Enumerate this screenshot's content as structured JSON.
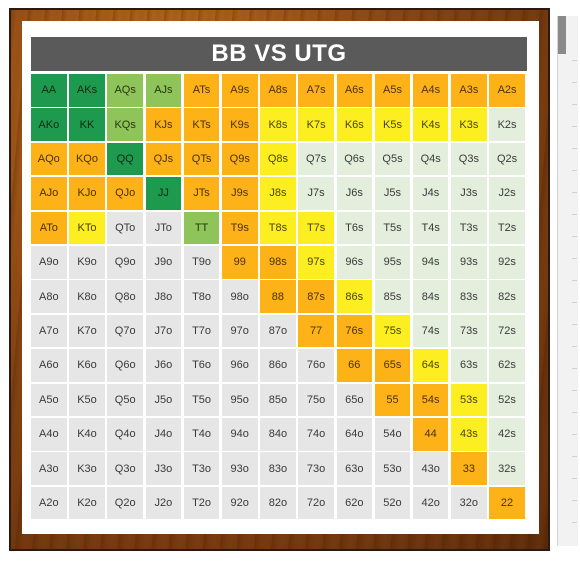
{
  "title": "BB VS UTG",
  "colors": {
    "dg": "#1e9a4e",
    "lg": "#8fc45a",
    "or": "#fdb318",
    "ye": "#fcee21",
    "gy": "#e6e6e6",
    "pg": "#e3eedc"
  },
  "grid": [
    [
      [
        "AA",
        "dg"
      ],
      [
        "AKs",
        "dg"
      ],
      [
        "AQs",
        "lg"
      ],
      [
        "AJs",
        "lg"
      ],
      [
        "ATs",
        "or"
      ],
      [
        "A9s",
        "or"
      ],
      [
        "A8s",
        "or"
      ],
      [
        "A7s",
        "or"
      ],
      [
        "A6s",
        "or"
      ],
      [
        "A5s",
        "or"
      ],
      [
        "A4s",
        "or"
      ],
      [
        "A3s",
        "or"
      ],
      [
        "A2s",
        "or"
      ]
    ],
    [
      [
        "AKo",
        "dg"
      ],
      [
        "KK",
        "dg"
      ],
      [
        "KQs",
        "lg"
      ],
      [
        "KJs",
        "or"
      ],
      [
        "KTs",
        "or"
      ],
      [
        "K9s",
        "or"
      ],
      [
        "K8s",
        "ye"
      ],
      [
        "K7s",
        "ye"
      ],
      [
        "K6s",
        "ye"
      ],
      [
        "K5s",
        "ye"
      ],
      [
        "K4s",
        "ye"
      ],
      [
        "K3s",
        "ye"
      ],
      [
        "K2s",
        "pg"
      ]
    ],
    [
      [
        "AQo",
        "or"
      ],
      [
        "KQo",
        "or"
      ],
      [
        "QQ",
        "dg"
      ],
      [
        "QJs",
        "or"
      ],
      [
        "QTs",
        "or"
      ],
      [
        "Q9s",
        "or"
      ],
      [
        "Q8s",
        "ye"
      ],
      [
        "Q7s",
        "pg"
      ],
      [
        "Q6s",
        "pg"
      ],
      [
        "Q5s",
        "pg"
      ],
      [
        "Q4s",
        "pg"
      ],
      [
        "Q3s",
        "pg"
      ],
      [
        "Q2s",
        "pg"
      ]
    ],
    [
      [
        "AJo",
        "or"
      ],
      [
        "KJo",
        "or"
      ],
      [
        "QJo",
        "or"
      ],
      [
        "JJ",
        "dg"
      ],
      [
        "JTs",
        "or"
      ],
      [
        "J9s",
        "or"
      ],
      [
        "J8s",
        "ye"
      ],
      [
        "J7s",
        "pg"
      ],
      [
        "J6s",
        "pg"
      ],
      [
        "J5s",
        "pg"
      ],
      [
        "J4s",
        "pg"
      ],
      [
        "J3s",
        "pg"
      ],
      [
        "J2s",
        "pg"
      ]
    ],
    [
      [
        "ATo",
        "or"
      ],
      [
        "KTo",
        "ye"
      ],
      [
        "QTo",
        "gy"
      ],
      [
        "JTo",
        "gy"
      ],
      [
        "TT",
        "lg"
      ],
      [
        "T9s",
        "or"
      ],
      [
        "T8s",
        "ye"
      ],
      [
        "T7s",
        "ye"
      ],
      [
        "T6s",
        "pg"
      ],
      [
        "T5s",
        "pg"
      ],
      [
        "T4s",
        "pg"
      ],
      [
        "T3s",
        "pg"
      ],
      [
        "T2s",
        "pg"
      ]
    ],
    [
      [
        "A9o",
        "gy"
      ],
      [
        "K9o",
        "gy"
      ],
      [
        "Q9o",
        "gy"
      ],
      [
        "J9o",
        "gy"
      ],
      [
        "T9o",
        "gy"
      ],
      [
        "99",
        "or"
      ],
      [
        "98s",
        "or"
      ],
      [
        "97s",
        "ye"
      ],
      [
        "96s",
        "pg"
      ],
      [
        "95s",
        "pg"
      ],
      [
        "94s",
        "pg"
      ],
      [
        "93s",
        "pg"
      ],
      [
        "92s",
        "pg"
      ]
    ],
    [
      [
        "A8o",
        "gy"
      ],
      [
        "K8o",
        "gy"
      ],
      [
        "Q8o",
        "gy"
      ],
      [
        "J8o",
        "gy"
      ],
      [
        "T8o",
        "gy"
      ],
      [
        "98o",
        "gy"
      ],
      [
        "88",
        "or"
      ],
      [
        "87s",
        "or"
      ],
      [
        "86s",
        "ye"
      ],
      [
        "85s",
        "pg"
      ],
      [
        "84s",
        "pg"
      ],
      [
        "83s",
        "pg"
      ],
      [
        "82s",
        "pg"
      ]
    ],
    [
      [
        "A7o",
        "gy"
      ],
      [
        "K7o",
        "gy"
      ],
      [
        "Q7o",
        "gy"
      ],
      [
        "J7o",
        "gy"
      ],
      [
        "T7o",
        "gy"
      ],
      [
        "97o",
        "gy"
      ],
      [
        "87o",
        "gy"
      ],
      [
        "77",
        "or"
      ],
      [
        "76s",
        "or"
      ],
      [
        "75s",
        "ye"
      ],
      [
        "74s",
        "pg"
      ],
      [
        "73s",
        "pg"
      ],
      [
        "72s",
        "pg"
      ]
    ],
    [
      [
        "A6o",
        "gy"
      ],
      [
        "K6o",
        "gy"
      ],
      [
        "Q6o",
        "gy"
      ],
      [
        "J6o",
        "gy"
      ],
      [
        "T6o",
        "gy"
      ],
      [
        "96o",
        "gy"
      ],
      [
        "86o",
        "gy"
      ],
      [
        "76o",
        "gy"
      ],
      [
        "66",
        "or"
      ],
      [
        "65s",
        "or"
      ],
      [
        "64s",
        "ye"
      ],
      [
        "63s",
        "pg"
      ],
      [
        "62s",
        "pg"
      ]
    ],
    [
      [
        "A5o",
        "gy"
      ],
      [
        "K5o",
        "gy"
      ],
      [
        "Q5o",
        "gy"
      ],
      [
        "J5o",
        "gy"
      ],
      [
        "T5o",
        "gy"
      ],
      [
        "95o",
        "gy"
      ],
      [
        "85o",
        "gy"
      ],
      [
        "75o",
        "gy"
      ],
      [
        "65o",
        "gy"
      ],
      [
        "55",
        "or"
      ],
      [
        "54s",
        "or"
      ],
      [
        "53s",
        "ye"
      ],
      [
        "52s",
        "pg"
      ]
    ],
    [
      [
        "A4o",
        "gy"
      ],
      [
        "K4o",
        "gy"
      ],
      [
        "Q4o",
        "gy"
      ],
      [
        "J4o",
        "gy"
      ],
      [
        "T4o",
        "gy"
      ],
      [
        "94o",
        "gy"
      ],
      [
        "84o",
        "gy"
      ],
      [
        "74o",
        "gy"
      ],
      [
        "64o",
        "gy"
      ],
      [
        "54o",
        "gy"
      ],
      [
        "44",
        "or"
      ],
      [
        "43s",
        "ye"
      ],
      [
        "42s",
        "pg"
      ]
    ],
    [
      [
        "A3o",
        "gy"
      ],
      [
        "K3o",
        "gy"
      ],
      [
        "Q3o",
        "gy"
      ],
      [
        "J3o",
        "gy"
      ],
      [
        "T3o",
        "gy"
      ],
      [
        "93o",
        "gy"
      ],
      [
        "83o",
        "gy"
      ],
      [
        "73o",
        "gy"
      ],
      [
        "63o",
        "gy"
      ],
      [
        "53o",
        "gy"
      ],
      [
        "43o",
        "gy"
      ],
      [
        "33",
        "or"
      ],
      [
        "32s",
        "pg"
      ]
    ],
    [
      [
        "A2o",
        "gy"
      ],
      [
        "K2o",
        "gy"
      ],
      [
        "Q2o",
        "gy"
      ],
      [
        "J2o",
        "gy"
      ],
      [
        "T2o",
        "gy"
      ],
      [
        "92o",
        "gy"
      ],
      [
        "82o",
        "gy"
      ],
      [
        "72o",
        "gy"
      ],
      [
        "62o",
        "gy"
      ],
      [
        "52o",
        "gy"
      ],
      [
        "42o",
        "gy"
      ],
      [
        "32o",
        "gy"
      ],
      [
        "22",
        "or"
      ]
    ]
  ]
}
